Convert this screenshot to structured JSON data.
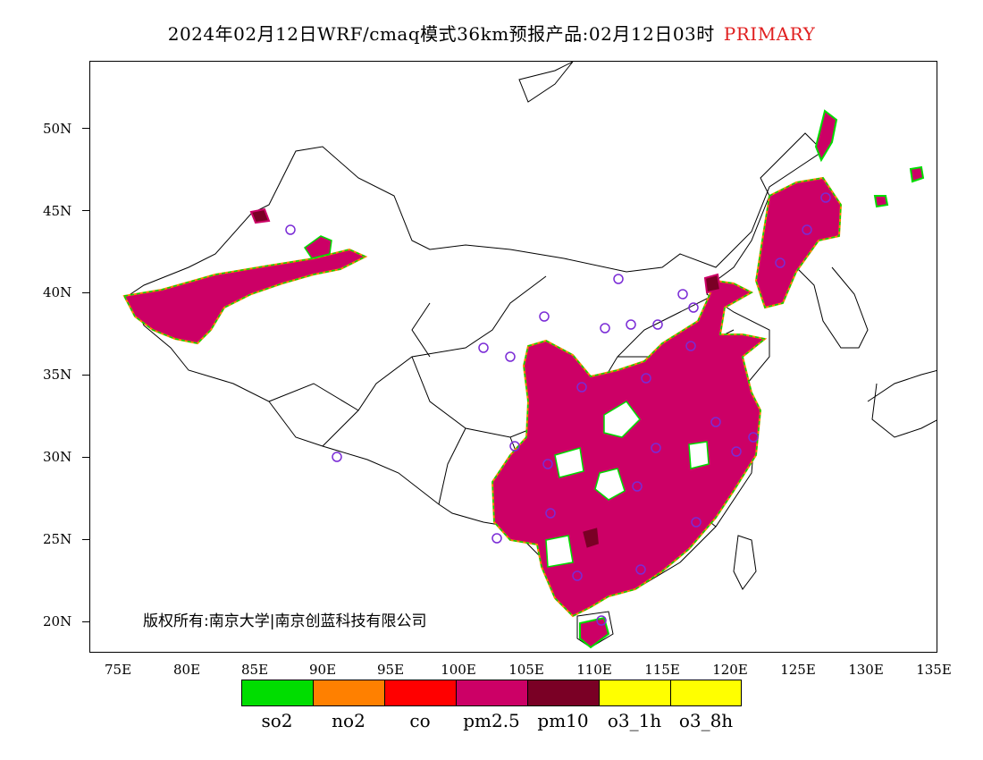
{
  "title": {
    "main": "2024年02月12日WRF/cmaq模式36km预报产品:02月12日03时",
    "tag": "PRIMARY"
  },
  "map": {
    "lat_labels": [
      "50N",
      "45N",
      "40N",
      "35N",
      "30N",
      "25N",
      "20N"
    ],
    "lon_labels": [
      "75E",
      "80E",
      "85E",
      "90E",
      "95E",
      "100E",
      "105E",
      "110E",
      "115E",
      "120E",
      "125E",
      "130E",
      "135E"
    ],
    "copyright": "版权所有:南京大学|南京创蓝科技有限公司",
    "colors": {
      "pm25": "#cc0066",
      "pm10": "#7a0025",
      "so2": "#00dd00",
      "no2": "#ff8000",
      "station": "#7a2bd6"
    }
  },
  "legend": [
    {
      "label": "so2",
      "color": "#00dd00"
    },
    {
      "label": "no2",
      "color": "#ff8000"
    },
    {
      "label": "co",
      "color": "#ff0000"
    },
    {
      "label": "pm2.5",
      "color": "#cc0066"
    },
    {
      "label": "pm10",
      "color": "#7a0025"
    },
    {
      "label": "o3_1h",
      "color": "#ffff00"
    },
    {
      "label": "o3_8h",
      "color": "#ffff00"
    }
  ]
}
